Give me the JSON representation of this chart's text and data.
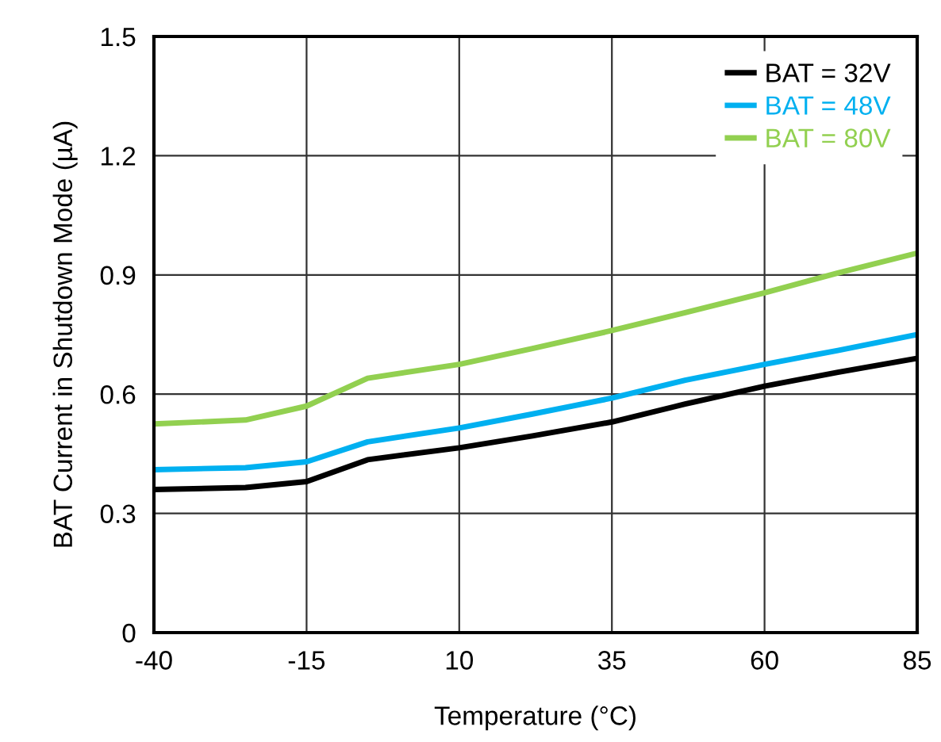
{
  "chart_data": {
    "type": "line",
    "xlabel": "Temperature (°C)",
    "ylabel": "BAT Current in Shutdown Mode (µA)",
    "x": [
      -40,
      -25,
      -15,
      -5,
      10,
      22,
      35,
      47,
      60,
      72,
      85
    ],
    "series": [
      {
        "name": "BAT = 32V",
        "color": "#000000",
        "values": [
          0.36,
          0.365,
          0.38,
          0.435,
          0.465,
          0.495,
          0.53,
          0.575,
          0.62,
          0.655,
          0.69
        ]
      },
      {
        "name": "BAT = 48V",
        "color": "#00b0f0",
        "values": [
          0.41,
          0.415,
          0.43,
          0.48,
          0.515,
          0.55,
          0.59,
          0.635,
          0.675,
          0.71,
          0.75
        ]
      },
      {
        "name": "BAT = 80V",
        "color": "#92d050",
        "values": [
          0.525,
          0.535,
          0.57,
          0.64,
          0.675,
          0.715,
          0.76,
          0.805,
          0.855,
          0.905,
          0.955
        ]
      }
    ],
    "xlim": [
      -40,
      85
    ],
    "xticks": [
      -40,
      -15,
      10,
      35,
      60,
      85
    ],
    "ylim": [
      0,
      1.5
    ],
    "yticks": [
      0,
      0.3,
      0.6,
      0.9,
      1.2,
      1.5
    ],
    "grid": true,
    "legend": "top right"
  }
}
